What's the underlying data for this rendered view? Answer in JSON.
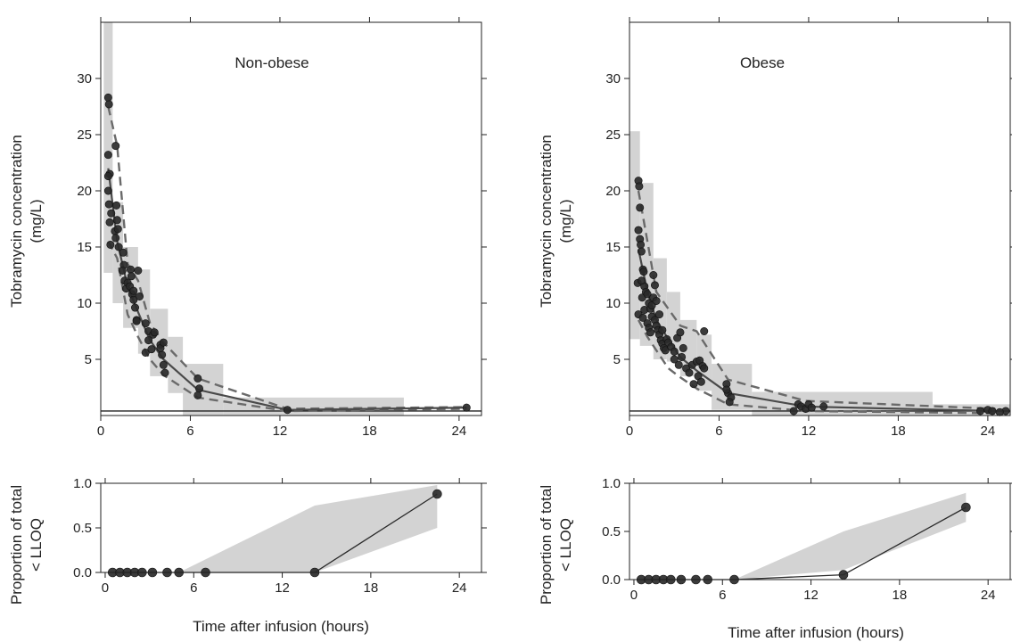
{
  "chart_data": [
    {
      "type": "scatter",
      "title": "Non-obese",
      "xlabel": "",
      "ylabel": [
        "Tobramycin concentration",
        "(mg/L)"
      ],
      "xlim": [
        0,
        25.5
      ],
      "ylim": [
        0,
        35
      ],
      "xticks": [
        0,
        6,
        12,
        18,
        24
      ],
      "yticks": [
        5,
        10,
        15,
        20,
        25,
        30
      ],
      "lloq": 0.4,
      "grid": false,
      "legend": "none",
      "colors": {
        "points": "#2a2a2a",
        "median": "#4a4a4a",
        "percentile": "#6a6a6a",
        "band": "#d3d3d3"
      },
      "x": [
        0.5,
        0.55,
        0.5,
        0.6,
        0.5,
        0.55,
        0.6,
        0.65,
        0.7,
        0.5,
        1.0,
        1.05,
        0.95,
        1.1,
        1.0,
        1.2,
        1.15,
        1.5,
        1.55,
        1.45,
        1.6,
        1.7,
        1.8,
        2.0,
        2.05,
        1.95,
        2.1,
        2.2,
        2.3,
        2.4,
        2.5,
        2.6,
        2.4,
        2.2,
        3.0,
        3.2,
        3.0,
        3.4,
        3.5,
        3.6,
        3.2,
        4.0,
        4.1,
        4.2,
        4.3,
        4.0,
        4.2,
        6.5,
        6.6,
        6.5,
        12.5,
        24.5
      ],
      "y": [
        28.3,
        27.7,
        23.2,
        21.5,
        21.3,
        18.8,
        17.2,
        15.2,
        18.0,
        20.0,
        24.0,
        18.7,
        16.4,
        17.4,
        15.8,
        15.0,
        16.6,
        14.5,
        13.4,
        12.9,
        12.0,
        11.3,
        11.8,
        13.0,
        12.4,
        11.5,
        10.8,
        10.3,
        9.6,
        8.5,
        12.9,
        10.6,
        8.4,
        11.1,
        8.2,
        7.5,
        5.6,
        5.9,
        7.2,
        7.4,
        6.7,
        6.3,
        5.4,
        4.5,
        3.8,
        6.0,
        6.5,
        3.3,
        2.4,
        1.8,
        0.5,
        0.7
      ],
      "bands": [
        {
          "x": [
            0.2,
            0.8
          ],
          "y": [
            12.7,
            35
          ]
        },
        {
          "x": [
            0.8,
            1.5
          ],
          "y": [
            10,
            19
          ]
        },
        {
          "x": [
            1.5,
            2.5
          ],
          "y": [
            7.8,
            15
          ]
        },
        {
          "x": [
            2.5,
            3.3
          ],
          "y": [
            5.5,
            13
          ]
        },
        {
          "x": [
            3.3,
            4.5
          ],
          "y": [
            3.5,
            9.5
          ]
        },
        {
          "x": [
            4.5,
            5.5
          ],
          "y": [
            2,
            7
          ]
        },
        {
          "x": [
            5.5,
            8.2
          ],
          "y": [
            0,
            4.6
          ]
        },
        {
          "x": [
            8.2,
            20.3
          ],
          "y": [
            0,
            1.6
          ]
        }
      ],
      "median_line": {
        "x": [
          0.5,
          1.1,
          1.8,
          2.5,
          3.3,
          4.2,
          6.5,
          12.5,
          24.5
        ],
        "y": [
          22,
          15.5,
          11.5,
          9.2,
          6.7,
          5.0,
          2.3,
          0.5,
          0.7
        ]
      },
      "p_low": {
        "x": [
          0.5,
          1.1,
          1.8,
          2.5,
          3.3,
          4.2,
          6.5,
          12.5,
          24.5
        ],
        "y": [
          15.5,
          14,
          9.0,
          7.0,
          5.0,
          3.6,
          1.6,
          0.4,
          0.6
        ]
      },
      "p_high": {
        "x": [
          0.5,
          1.1,
          1.8,
          2.5,
          3.3,
          4.2,
          6.5,
          12.5,
          24.5
        ],
        "y": [
          27.5,
          24,
          13.5,
          12.0,
          8.2,
          6.5,
          3.3,
          0.6,
          0.75
        ]
      }
    },
    {
      "type": "scatter",
      "title": "Obese",
      "xlabel": "",
      "ylabel": [
        "Tobramycin concentration",
        "(mg/L)"
      ],
      "xlim": [
        0,
        25.5
      ],
      "ylim": [
        0,
        35
      ],
      "xticks": [
        0,
        6,
        12,
        18,
        24
      ],
      "yticks": [
        5,
        10,
        15,
        20,
        25,
        30
      ],
      "lloq": 0.4,
      "grid": false,
      "legend": "none",
      "colors": {
        "points": "#2a2a2a",
        "median": "#4a4a4a",
        "percentile": "#6a6a6a",
        "band": "#d3d3d3"
      },
      "x": [
        0.6,
        0.65,
        0.7,
        0.6,
        0.7,
        0.75,
        0.8,
        0.55,
        0.6,
        0.9,
        0.95,
        1.0,
        1.0,
        0.8,
        0.85,
        0.9,
        1.1,
        1.2,
        1.3,
        1.4,
        1.5,
        1.6,
        1.2,
        1.3,
        1.4,
        1.5,
        1.7,
        1.8,
        1.9,
        2.0,
        2.1,
        2.2,
        2.3,
        2.4,
        2.5,
        1.6,
        1.7,
        1.8,
        2.0,
        2.2,
        2.6,
        2.8,
        3.0,
        3.2,
        3.4,
        3.6,
        3.0,
        3.3,
        3.5,
        3.8,
        4.0,
        4.2,
        4.5,
        4.7,
        4.9,
        5.0,
        4.6,
        4.8,
        4.3,
        5.0,
        6.5,
        6.6,
        6.8,
        6.7,
        6.5,
        11.3,
        11.5,
        11.8,
        12.0,
        12.2,
        11.0,
        13.0,
        23.5,
        24.0,
        24.3,
        25.2,
        24.8
      ],
      "y": [
        20.9,
        20.4,
        18.5,
        16.5,
        15.7,
        15.2,
        14.6,
        11.8,
        9.0,
        13.0,
        12.8,
        11.5,
        9.4,
        12.0,
        10.5,
        8.7,
        11.0,
        10.8,
        10.0,
        9.5,
        9.8,
        10.5,
        8.2,
        7.8,
        7.4,
        8.8,
        8.5,
        8.0,
        7.6,
        7.2,
        6.7,
        6.4,
        6.0,
        5.8,
        6.8,
        12.5,
        11.6,
        10.2,
        9.0,
        7.6,
        6.5,
        6.1,
        5.7,
        6.9,
        7.4,
        6.0,
        5.0,
        4.5,
        5.2,
        4.2,
        3.8,
        4.5,
        4.8,
        4.9,
        4.4,
        7.5,
        3.5,
        3.0,
        2.8,
        4.2,
        2.8,
        2.0,
        1.6,
        1.2,
        2.3,
        1.0,
        0.8,
        0.6,
        1.0,
        0.7,
        0.4,
        0.8,
        0.4,
        0.5,
        0.4,
        0.4,
        0.3
      ],
      "bands": [
        {
          "x": [
            0.0,
            0.7
          ],
          "y": [
            6.8,
            25.3
          ]
        },
        {
          "x": [
            0.7,
            1.6
          ],
          "y": [
            6.2,
            20.7
          ]
        },
        {
          "x": [
            1.6,
            2.5
          ],
          "y": [
            5.0,
            14.0
          ]
        },
        {
          "x": [
            2.5,
            3.4
          ],
          "y": [
            4.8,
            11.0
          ]
        },
        {
          "x": [
            3.4,
            4.5
          ],
          "y": [
            3.5,
            8.5
          ]
        },
        {
          "x": [
            4.5,
            5.5
          ],
          "y": [
            2.2,
            7.2
          ]
        },
        {
          "x": [
            5.5,
            8.2
          ],
          "y": [
            0.5,
            4.6
          ]
        },
        {
          "x": [
            8.2,
            20.3
          ],
          "y": [
            0,
            2.1
          ]
        },
        {
          "x": [
            20.3,
            25.5
          ],
          "y": [
            0,
            1.0
          ]
        }
      ],
      "median_line": {
        "x": [
          0.6,
          1.2,
          1.8,
          2.6,
          3.4,
          4.5,
          6.6,
          11.8,
          24.5
        ],
        "y": [
          14.8,
          11.0,
          8.5,
          6.8,
          5.2,
          4.0,
          2.0,
          0.8,
          0.4
        ]
      },
      "p_low": {
        "x": [
          0.6,
          1.2,
          1.8,
          2.6,
          3.4,
          4.5,
          6.6,
          11.8,
          24.5
        ],
        "y": [
          8.5,
          7.0,
          5.8,
          4.2,
          3.4,
          2.4,
          1.0,
          0.4,
          0.2
        ]
      },
      "p_high": {
        "x": [
          0.6,
          1.2,
          1.8,
          2.6,
          3.4,
          4.5,
          6.6,
          11.8,
          24.5
        ],
        "y": [
          20.0,
          15.5,
          11.0,
          9.5,
          8.0,
          7.5,
          3.2,
          1.3,
          0.6
        ]
      }
    },
    {
      "type": "line",
      "title": "",
      "xlabel": "Time after infusion (hours)",
      "ylabel": [
        "Proportion of total",
        "< LLOQ"
      ],
      "xlim": [
        -0.3,
        25.5
      ],
      "ylim": [
        0,
        1.0
      ],
      "xticks": [
        0,
        6,
        12,
        18,
        24
      ],
      "yticks": [
        0.0,
        0.5,
        1.0
      ],
      "grid": false,
      "legend": "none",
      "colors": {
        "points": "#2a2a2a",
        "line": "#2a2a2a",
        "band": "#d3d3d3"
      },
      "x": [
        0.5,
        1.0,
        1.5,
        2.0,
        2.5,
        3.2,
        4.2,
        5.0,
        6.8,
        14.2,
        22.5
      ],
      "y": [
        0,
        0,
        0,
        0,
        0,
        0,
        0,
        0,
        0,
        0.0,
        0.88
      ],
      "band": {
        "x": [
          0.5,
          5.0,
          14.2,
          22.5
        ],
        "upper": [
          0,
          0,
          0.75,
          0.98
        ],
        "lower": [
          0,
          0,
          0,
          0.5
        ]
      }
    },
    {
      "type": "line",
      "title": "",
      "xlabel": "Time after infusion (hours)",
      "ylabel": [
        "Proportion of total",
        "< LLOQ"
      ],
      "xlim": [
        -0.3,
        25.5
      ],
      "ylim": [
        0,
        1.0
      ],
      "xticks": [
        0,
        6,
        12,
        18,
        24
      ],
      "yticks": [
        0.0,
        0.5,
        1.0
      ],
      "grid": false,
      "legend": "none",
      "colors": {
        "points": "#2a2a2a",
        "line": "#2a2a2a",
        "band": "#d3d3d3"
      },
      "x": [
        0.5,
        1.0,
        1.5,
        2.0,
        2.5,
        3.2,
        4.2,
        5.0,
        6.8,
        14.2,
        22.5
      ],
      "y": [
        0,
        0,
        0,
        0,
        0,
        0,
        0,
        0,
        0,
        0.05,
        0.75
      ],
      "band": {
        "x": [
          0.5,
          6.8,
          14.2,
          22.5
        ],
        "upper": [
          0,
          0,
          0.5,
          0.9
        ],
        "lower": [
          0,
          0,
          0.1,
          0.6
        ]
      }
    }
  ]
}
